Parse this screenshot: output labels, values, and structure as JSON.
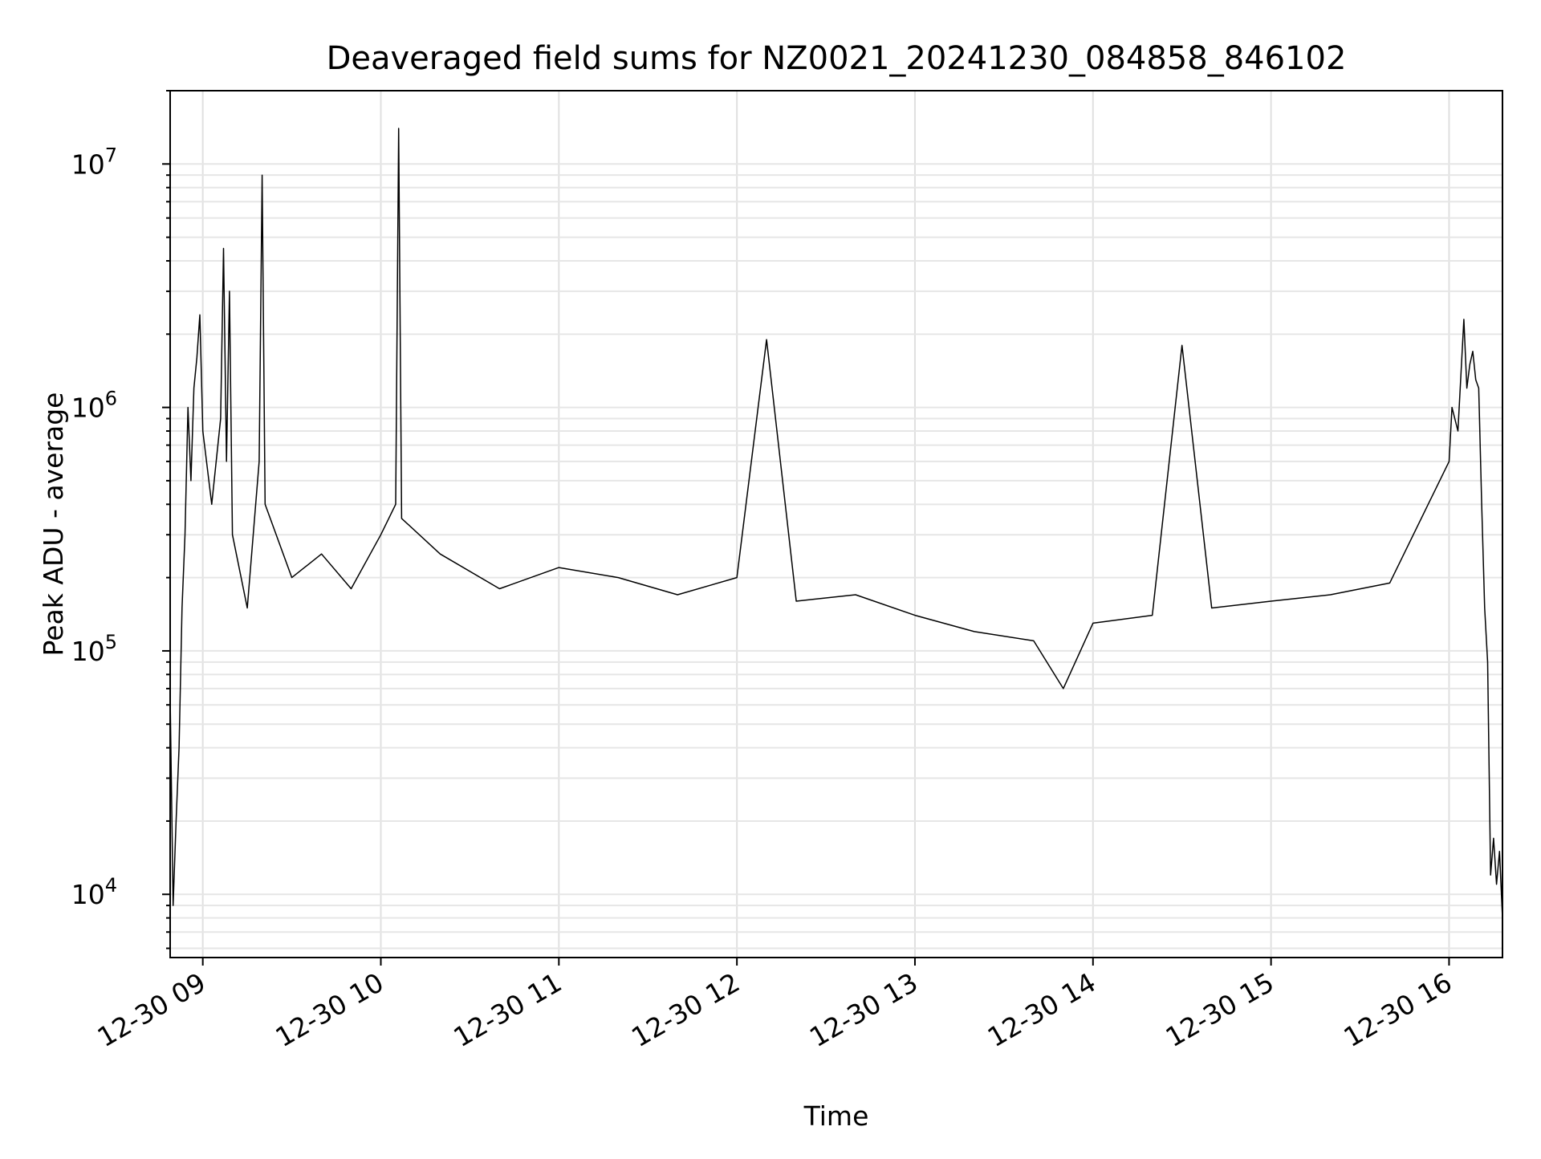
{
  "chart_data": {
    "type": "line",
    "title": "Deaveraged field sums for NZ0021_20241230_084858_846102",
    "xlabel": "Time",
    "ylabel": "Peak ADU - average",
    "yscale": "log",
    "xlim": [
      "12-30 08:49",
      "12-30 16:18"
    ],
    "ylim": [
      5500,
      20000000
    ],
    "grid": true,
    "legend": "none",
    "x_ticks": [
      {
        "label": "12-30 09",
        "value": "12-30 09:00"
      },
      {
        "label": "12-30 10",
        "value": "12-30 10:00"
      },
      {
        "label": "12-30 11",
        "value": "12-30 11:00"
      },
      {
        "label": "12-30 12",
        "value": "12-30 12:00"
      },
      {
        "label": "12-30 13",
        "value": "12-30 13:00"
      },
      {
        "label": "12-30 14",
        "value": "12-30 14:00"
      },
      {
        "label": "12-30 15",
        "value": "12-30 15:00"
      },
      {
        "label": "12-30 16",
        "value": "12-30 16:00"
      }
    ],
    "y_ticks": [
      {
        "base": "10",
        "exp": "4",
        "value": 10000
      },
      {
        "base": "10",
        "exp": "5",
        "value": 100000
      },
      {
        "base": "10",
        "exp": "6",
        "value": 1000000
      },
      {
        "base": "10",
        "exp": "7",
        "value": 10000000
      }
    ],
    "series": [
      {
        "color": "#000000",
        "points": [
          [
            "12-30 08:49",
            65000
          ],
          [
            "12-30 08:50",
            9000
          ],
          [
            "12-30 08:51",
            20000
          ],
          [
            "12-30 08:52",
            40000
          ],
          [
            "12-30 08:53",
            150000
          ],
          [
            "12-30 08:54",
            300000
          ],
          [
            "12-30 08:55",
            1000000
          ],
          [
            "12-30 08:56",
            500000
          ],
          [
            "12-30 08:57",
            1200000
          ],
          [
            "12-30 08:58",
            1600000
          ],
          [
            "12-30 08:59",
            2400000
          ],
          [
            "12-30 09:00",
            800000
          ],
          [
            "12-30 09:03",
            400000
          ],
          [
            "12-30 09:06",
            900000
          ],
          [
            "12-30 09:07",
            4500000
          ],
          [
            "12-30 09:08",
            600000
          ],
          [
            "12-30 09:09",
            3000000
          ],
          [
            "12-30 09:10",
            300000
          ],
          [
            "12-30 09:15",
            150000
          ],
          [
            "12-30 09:19",
            600000
          ],
          [
            "12-30 09:20",
            9000000
          ],
          [
            "12-30 09:21",
            400000
          ],
          [
            "12-30 09:30",
            200000
          ],
          [
            "12-30 09:40",
            250000
          ],
          [
            "12-30 09:50",
            180000
          ],
          [
            "12-30 10:00",
            300000
          ],
          [
            "12-30 10:05",
            400000
          ],
          [
            "12-30 10:06",
            14000000
          ],
          [
            "12-30 10:07",
            350000
          ],
          [
            "12-30 10:20",
            250000
          ],
          [
            "12-30 10:40",
            180000
          ],
          [
            "12-30 11:00",
            220000
          ],
          [
            "12-30 11:20",
            200000
          ],
          [
            "12-30 11:40",
            170000
          ],
          [
            "12-30 12:00",
            200000
          ],
          [
            "12-30 12:10",
            1900000
          ],
          [
            "12-30 12:20",
            160000
          ],
          [
            "12-30 12:40",
            170000
          ],
          [
            "12-30 13:00",
            140000
          ],
          [
            "12-30 13:20",
            120000
          ],
          [
            "12-30 13:40",
            110000
          ],
          [
            "12-30 13:50",
            70000
          ],
          [
            "12-30 14:00",
            130000
          ],
          [
            "12-30 14:20",
            140000
          ],
          [
            "12-30 14:30",
            1800000
          ],
          [
            "12-30 14:40",
            150000
          ],
          [
            "12-30 15:00",
            160000
          ],
          [
            "12-30 15:20",
            170000
          ],
          [
            "12-30 15:40",
            190000
          ],
          [
            "12-30 15:55",
            450000
          ],
          [
            "12-30 16:00",
            600000
          ],
          [
            "12-30 16:01",
            1000000
          ],
          [
            "12-30 16:03",
            800000
          ],
          [
            "12-30 16:05",
            2300000
          ],
          [
            "12-30 16:06",
            1200000
          ],
          [
            "12-30 16:07",
            1500000
          ],
          [
            "12-30 16:08",
            1700000
          ],
          [
            "12-30 16:09",
            1300000
          ],
          [
            "12-30 16:10",
            1200000
          ],
          [
            "12-30 16:11",
            400000
          ],
          [
            "12-30 16:12",
            150000
          ],
          [
            "12-30 16:13",
            90000
          ],
          [
            "12-30 16:14",
            12000
          ],
          [
            "12-30 16:15",
            17000
          ],
          [
            "12-30 16:16",
            11000
          ],
          [
            "12-30 16:17",
            15000
          ],
          [
            "12-30 16:18",
            8000
          ]
        ]
      }
    ]
  }
}
